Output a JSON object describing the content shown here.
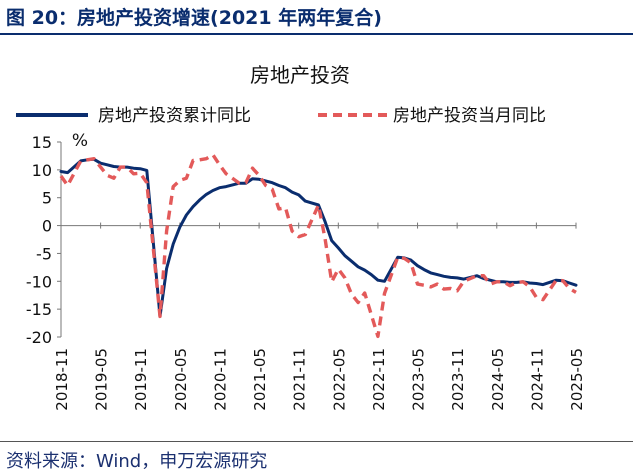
{
  "figure": {
    "title": "图 20：房地产投资增速(2021 年两年复合)",
    "source": "资料来源：Wind，申万宏源研究"
  },
  "colors": {
    "accent": "#0a2d6e",
    "series_cum": "#0a2d6e",
    "series_month": "#e35a5a"
  },
  "chart_data": {
    "type": "line",
    "title": "房地产投资",
    "ylabel": "%",
    "xlabel": "",
    "ylim": [
      -20,
      15
    ],
    "yticks": [
      15,
      10,
      5,
      0,
      -5,
      -10,
      -15,
      -20
    ],
    "grid": false,
    "legend_position": "top",
    "xticks": [
      "2018-11",
      "2019-05",
      "2019-11",
      "2020-05",
      "2020-11",
      "2021-05",
      "2021-11",
      "2022-05",
      "2022-11",
      "2023-05",
      "2023-11",
      "2024-05",
      "2024-11",
      "2025-05"
    ],
    "series": [
      {
        "name": "房地产投资累计同比",
        "style": "solid",
        "points": [
          [
            "2018-11",
            9.7
          ],
          [
            "2018-12",
            9.5
          ],
          [
            "2019-02",
            11.6
          ],
          [
            "2019-03",
            11.8
          ],
          [
            "2019-04",
            11.9
          ],
          [
            "2019-05",
            11.2
          ],
          [
            "2019-06",
            10.9
          ],
          [
            "2019-07",
            10.6
          ],
          [
            "2019-08",
            10.5
          ],
          [
            "2019-09",
            10.5
          ],
          [
            "2019-10",
            10.3
          ],
          [
            "2019-11",
            10.2
          ],
          [
            "2019-12",
            9.9
          ],
          [
            "2020-02",
            -16.3
          ],
          [
            "2020-03",
            -7.7
          ],
          [
            "2020-04",
            -3.3
          ],
          [
            "2020-05",
            -0.3
          ],
          [
            "2020-06",
            1.9
          ],
          [
            "2020-07",
            3.4
          ],
          [
            "2020-08",
            4.6
          ],
          [
            "2020-09",
            5.6
          ],
          [
            "2020-10",
            6.3
          ],
          [
            "2020-11",
            6.8
          ],
          [
            "2020-12",
            7.0
          ],
          [
            "2021-02",
            7.6
          ],
          [
            "2021-03",
            7.6
          ],
          [
            "2021-04",
            8.4
          ],
          [
            "2021-05",
            8.3
          ],
          [
            "2021-06",
            8.0
          ],
          [
            "2021-07",
            7.7
          ],
          [
            "2021-08",
            7.2
          ],
          [
            "2021-09",
            6.8
          ],
          [
            "2021-10",
            6.0
          ],
          [
            "2021-11",
            5.5
          ],
          [
            "2021-12",
            4.4
          ],
          [
            "2022-02",
            3.7
          ],
          [
            "2022-03",
            0.7
          ],
          [
            "2022-04",
            -2.7
          ],
          [
            "2022-05",
            -4.0
          ],
          [
            "2022-06",
            -5.4
          ],
          [
            "2022-07",
            -6.4
          ],
          [
            "2022-08",
            -7.4
          ],
          [
            "2022-09",
            -8.0
          ],
          [
            "2022-10",
            -8.8
          ],
          [
            "2022-11",
            -9.8
          ],
          [
            "2022-12",
            -10.0
          ],
          [
            "2023-02",
            -5.7
          ],
          [
            "2023-03",
            -5.8
          ],
          [
            "2023-04",
            -6.2
          ],
          [
            "2023-05",
            -7.2
          ],
          [
            "2023-06",
            -7.9
          ],
          [
            "2023-07",
            -8.5
          ],
          [
            "2023-08",
            -8.8
          ],
          [
            "2023-09",
            -9.1
          ],
          [
            "2023-10",
            -9.3
          ],
          [
            "2023-11",
            -9.4
          ],
          [
            "2023-12",
            -9.6
          ],
          [
            "2024-02",
            -9.0
          ],
          [
            "2024-03",
            -9.5
          ],
          [
            "2024-04",
            -9.8
          ],
          [
            "2024-05",
            -10.1
          ],
          [
            "2024-06",
            -10.1
          ],
          [
            "2024-07",
            -10.2
          ],
          [
            "2024-08",
            -10.2
          ],
          [
            "2024-09",
            -10.1
          ],
          [
            "2024-10",
            -10.3
          ],
          [
            "2024-11",
            -10.4
          ],
          [
            "2024-12",
            -10.6
          ],
          [
            "2025-02",
            -9.8
          ],
          [
            "2025-03",
            -9.9
          ],
          [
            "2025-04",
            -10.3
          ],
          [
            "2025-05",
            -10.7
          ]
        ]
      },
      {
        "name": "房地产投资当月同比",
        "style": "dashed",
        "points": [
          [
            "2018-11",
            8.9
          ],
          [
            "2018-12",
            7.2
          ],
          [
            "2019-02",
            11.6
          ],
          [
            "2019-03",
            11.8
          ],
          [
            "2019-04",
            12.0
          ],
          [
            "2019-05",
            10.5
          ],
          [
            "2019-06",
            9.0
          ],
          [
            "2019-07",
            8.5
          ],
          [
            "2019-08",
            10.5
          ],
          [
            "2019-09",
            10.5
          ],
          [
            "2019-10",
            9.3
          ],
          [
            "2019-11",
            9.4
          ],
          [
            "2019-12",
            7.7
          ],
          [
            "2020-02",
            -16.3
          ],
          [
            "2020-03",
            -1.0
          ],
          [
            "2020-04",
            7.0
          ],
          [
            "2020-05",
            8.1
          ],
          [
            "2020-06",
            8.5
          ],
          [
            "2020-07",
            11.7
          ],
          [
            "2020-08",
            11.8
          ],
          [
            "2020-09",
            12.0
          ],
          [
            "2020-10",
            12.7
          ],
          [
            "2020-11",
            10.9
          ],
          [
            "2020-12",
            9.3
          ],
          [
            "2021-02",
            7.6
          ],
          [
            "2021-03",
            7.7
          ],
          [
            "2021-04",
            10.3
          ],
          [
            "2021-05",
            9.0
          ],
          [
            "2021-06",
            7.2
          ],
          [
            "2021-07",
            6.5
          ],
          [
            "2021-08",
            3.0
          ],
          [
            "2021-09",
            3.2
          ],
          [
            "2021-10",
            -1.0
          ],
          [
            "2021-11",
            -2.0
          ],
          [
            "2021-12",
            -1.6
          ],
          [
            "2022-02",
            3.7
          ],
          [
            "2022-03",
            -2.4
          ],
          [
            "2022-04",
            -10.1
          ],
          [
            "2022-05",
            -7.8
          ],
          [
            "2022-06",
            -9.4
          ],
          [
            "2022-07",
            -12.3
          ],
          [
            "2022-08",
            -13.8
          ],
          [
            "2022-09",
            -12.1
          ],
          [
            "2022-10",
            -16.0
          ],
          [
            "2022-11",
            -19.9
          ],
          [
            "2022-12",
            -12.2
          ],
          [
            "2023-02",
            -5.7
          ],
          [
            "2023-03",
            -5.9
          ],
          [
            "2023-04",
            -6.7
          ],
          [
            "2023-05",
            -10.5
          ],
          [
            "2023-06",
            -10.7
          ],
          [
            "2023-07",
            -11.0
          ],
          [
            "2023-08",
            -10.5
          ],
          [
            "2023-09",
            -11.4
          ],
          [
            "2023-10",
            -11.3
          ],
          [
            "2023-11",
            -11.7
          ],
          [
            "2023-12",
            -10.0
          ],
          [
            "2024-02",
            -9.0
          ],
          [
            "2024-03",
            -9.0
          ],
          [
            "2024-04",
            -10.5
          ],
          [
            "2024-05",
            -10.1
          ],
          [
            "2024-06",
            -10.1
          ],
          [
            "2024-07",
            -10.8
          ],
          [
            "2024-08",
            -10.2
          ],
          [
            "2024-09",
            -10.1
          ],
          [
            "2024-10",
            -11.0
          ],
          [
            "2024-11",
            -12.9
          ],
          [
            "2024-12",
            -13.3
          ],
          [
            "2025-02",
            -9.8
          ],
          [
            "2025-03",
            -9.9
          ],
          [
            "2025-04",
            -11.3
          ],
          [
            "2025-05",
            -12.0
          ]
        ]
      }
    ]
  }
}
